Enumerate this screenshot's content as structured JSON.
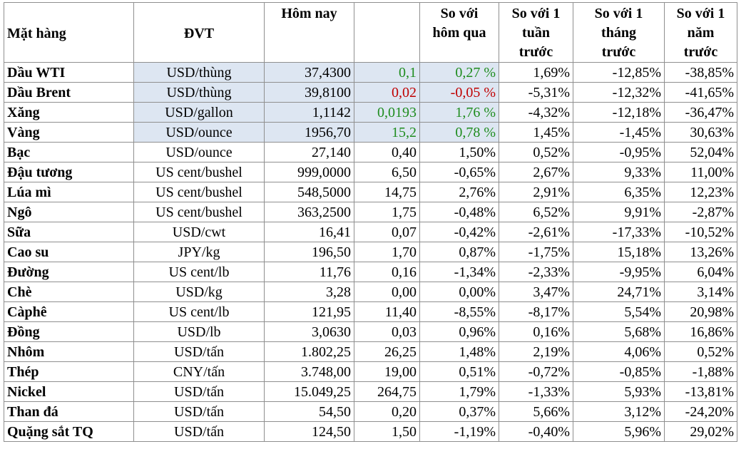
{
  "headers": {
    "name": "Mặt hàng",
    "unit": "ĐVT",
    "today": "Hôm nay",
    "change": "",
    "day": [
      "So với",
      "hôm qua"
    ],
    "week": [
      "So với 1",
      "tuần",
      "trước"
    ],
    "month": [
      "So với 1",
      "tháng",
      "trước"
    ],
    "year": [
      "So với 1",
      "năm",
      "trước"
    ]
  },
  "colors": {
    "up": "#1e8c1e",
    "down": "#c00000",
    "highlight": "#dde6f2",
    "border": "#8f8f8f"
  },
  "rows": [
    {
      "name": "Dầu WTI",
      "unit": "USD/thùng",
      "today": "37,4300",
      "change": "0,1",
      "day": "0,27 %",
      "week": "1,69%",
      "month": "-12,85%",
      "year": "-38,85%",
      "trend": "up",
      "highlight": true
    },
    {
      "name": "Dầu Brent",
      "unit": "USD/thùng",
      "today": "39,8100",
      "change": "0,02",
      "day": "-0,05 %",
      "week": "-5,31%",
      "month": "-12,32%",
      "year": "-41,65%",
      "trend": "down",
      "highlight": true
    },
    {
      "name": "Xăng",
      "unit": "USD/gallon",
      "today": "1,1142",
      "change": "0,0193",
      "day": "1,76 %",
      "week": "-4,32%",
      "month": "-12,18%",
      "year": "-36,47%",
      "trend": "up",
      "highlight": true
    },
    {
      "name": "Vàng",
      "unit": "USD/ounce",
      "today": "1956,70",
      "change": "15,2",
      "day": "0,78 %",
      "week": "1,45%",
      "month": "-1,45%",
      "year": "30,63%",
      "trend": "up",
      "highlight": true
    },
    {
      "name": "Bạc",
      "unit": "USD/ounce",
      "today": "27,140",
      "change": "0,40",
      "day": "1,50%",
      "week": "0,52%",
      "month": "-0,95%",
      "year": "52,04%",
      "trend": "none",
      "highlight": false
    },
    {
      "name": "Đậu tương",
      "unit": "US cent/bushel",
      "today": "999,0000",
      "change": "6,50",
      "day": "-0,65%",
      "week": "2,67%",
      "month": "9,33%",
      "year": "11,00%",
      "trend": "none",
      "highlight": false
    },
    {
      "name": "Lúa mì",
      "unit": "US cent/bushel",
      "today": "548,5000",
      "change": "14,75",
      "day": "2,76%",
      "week": "2,91%",
      "month": "6,35%",
      "year": "12,23%",
      "trend": "none",
      "highlight": false
    },
    {
      "name": "Ngô",
      "unit": "US cent/bushel",
      "today": "363,2500",
      "change": "1,75",
      "day": "-0,48%",
      "week": "6,52%",
      "month": "9,91%",
      "year": "-2,87%",
      "trend": "none",
      "highlight": false
    },
    {
      "name": "Sữa",
      "unit": "USD/cwt",
      "today": "16,41",
      "change": "0,07",
      "day": "-0,42%",
      "week": "-2,61%",
      "month": "-17,33%",
      "year": "-10,52%",
      "trend": "none",
      "highlight": false
    },
    {
      "name": "Cao su",
      "unit": "JPY/kg",
      "today": "196,50",
      "change": "1,70",
      "day": "0,87%",
      "week": "-1,75%",
      "month": "15,18%",
      "year": "13,26%",
      "trend": "none",
      "highlight": false
    },
    {
      "name": "Đường",
      "unit": "US cent/lb",
      "today": "11,76",
      "change": "0,16",
      "day": "-1,34%",
      "week": "-2,33%",
      "month": "-9,95%",
      "year": "6,04%",
      "trend": "none",
      "highlight": false
    },
    {
      "name": "Chè",
      "unit": "USD/kg",
      "today": "3,28",
      "change": "0,00",
      "day": "0,00%",
      "week": "3,47%",
      "month": "24,71%",
      "year": "3,14%",
      "trend": "none",
      "highlight": false
    },
    {
      "name": "Càphê",
      "unit": "US cent/lb",
      "today": "121,95",
      "change": "11,40",
      "day": "-8,55%",
      "week": "-8,17%",
      "month": "5,54%",
      "year": "20,98%",
      "trend": "none",
      "highlight": false
    },
    {
      "name": "Đồng",
      "unit": "USD/lb",
      "today": "3,0630",
      "change": "0,03",
      "day": "0,96%",
      "week": "0,16%",
      "month": "5,68%",
      "year": "16,86%",
      "trend": "none",
      "highlight": false
    },
    {
      "name": "Nhôm",
      "unit": "USD/tấn",
      "today": "1.802,25",
      "change": "26,25",
      "day": "1,48%",
      "week": "2,19%",
      "month": "4,06%",
      "year": "0,52%",
      "trend": "none",
      "highlight": false
    },
    {
      "name": "Thép",
      "unit": "CNY/tấn",
      "today": "3.748,00",
      "change": "19,00",
      "day": "0,51%",
      "week": "-0,72%",
      "month": "-0,85%",
      "year": "-1,88%",
      "trend": "none",
      "highlight": false
    },
    {
      "name": "Nickel",
      "unit": "USD/tấn",
      "today": "15.049,25",
      "change": "264,75",
      "day": "1,79%",
      "week": "-1,33%",
      "month": "5,93%",
      "year": "-13,81%",
      "trend": "none",
      "highlight": false
    },
    {
      "name": "Than đá",
      "unit": "USD/tấn",
      "today": "54,50",
      "change": "0,20",
      "day": "0,37%",
      "week": "5,66%",
      "month": "3,12%",
      "year": "-24,20%",
      "trend": "none",
      "highlight": false
    },
    {
      "name": "Quặng sắt TQ",
      "unit": "USD/tấn",
      "today": "124,50",
      "change": "1,50",
      "day": "-1,19%",
      "week": "-0,40%",
      "month": "5,96%",
      "year": "29,02%",
      "trend": "none",
      "highlight": false
    }
  ]
}
